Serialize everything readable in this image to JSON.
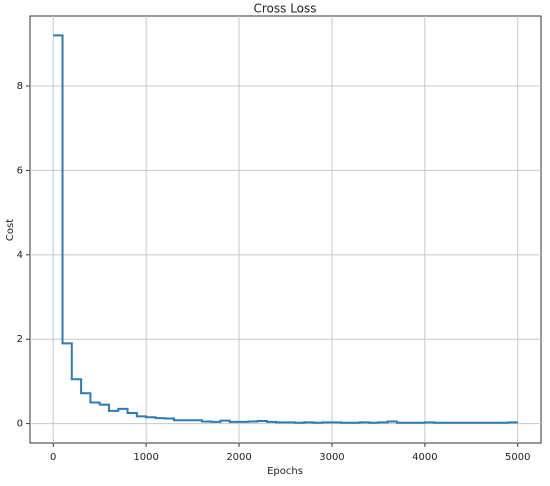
{
  "chart_data": {
    "type": "line",
    "drawstyle": "steps-post",
    "title": "Cross Loss",
    "xlabel": "Epochs",
    "ylabel": "Cost",
    "x": [
      0,
      100,
      200,
      300,
      400,
      500,
      600,
      700,
      800,
      900,
      1000,
      1100,
      1200,
      1300,
      1400,
      1500,
      1600,
      1700,
      1800,
      1900,
      2000,
      2100,
      2200,
      2300,
      2400,
      2500,
      2600,
      2700,
      2800,
      2900,
      3000,
      3100,
      3200,
      3300,
      3400,
      3500,
      3600,
      3700,
      3800,
      3900,
      4000,
      4100,
      4200,
      4300,
      4400,
      4500,
      4600,
      4700,
      4800,
      4900,
      5000
    ],
    "series": [
      {
        "name": "Cost",
        "color": "#2e7bb4",
        "values": [
          9.2,
          1.9,
          1.05,
          0.72,
          0.5,
          0.45,
          0.3,
          0.35,
          0.25,
          0.17,
          0.15,
          0.13,
          0.12,
          0.08,
          0.08,
          0.08,
          0.05,
          0.04,
          0.07,
          0.04,
          0.04,
          0.05,
          0.06,
          0.04,
          0.03,
          0.03,
          0.02,
          0.03,
          0.02,
          0.03,
          0.03,
          0.02,
          0.02,
          0.03,
          0.02,
          0.03,
          0.05,
          0.02,
          0.02,
          0.02,
          0.03,
          0.02,
          0.02,
          0.02,
          0.02,
          0.02,
          0.02,
          0.02,
          0.02,
          0.03,
          0.03
        ]
      }
    ],
    "xlim": [
      -250,
      5250
    ],
    "ylim": [
      -0.46,
      9.66
    ],
    "xticks": [
      0,
      1000,
      2000,
      3000,
      4000,
      5000
    ],
    "yticks": [
      0,
      2,
      4,
      6,
      8
    ],
    "grid": true
  }
}
